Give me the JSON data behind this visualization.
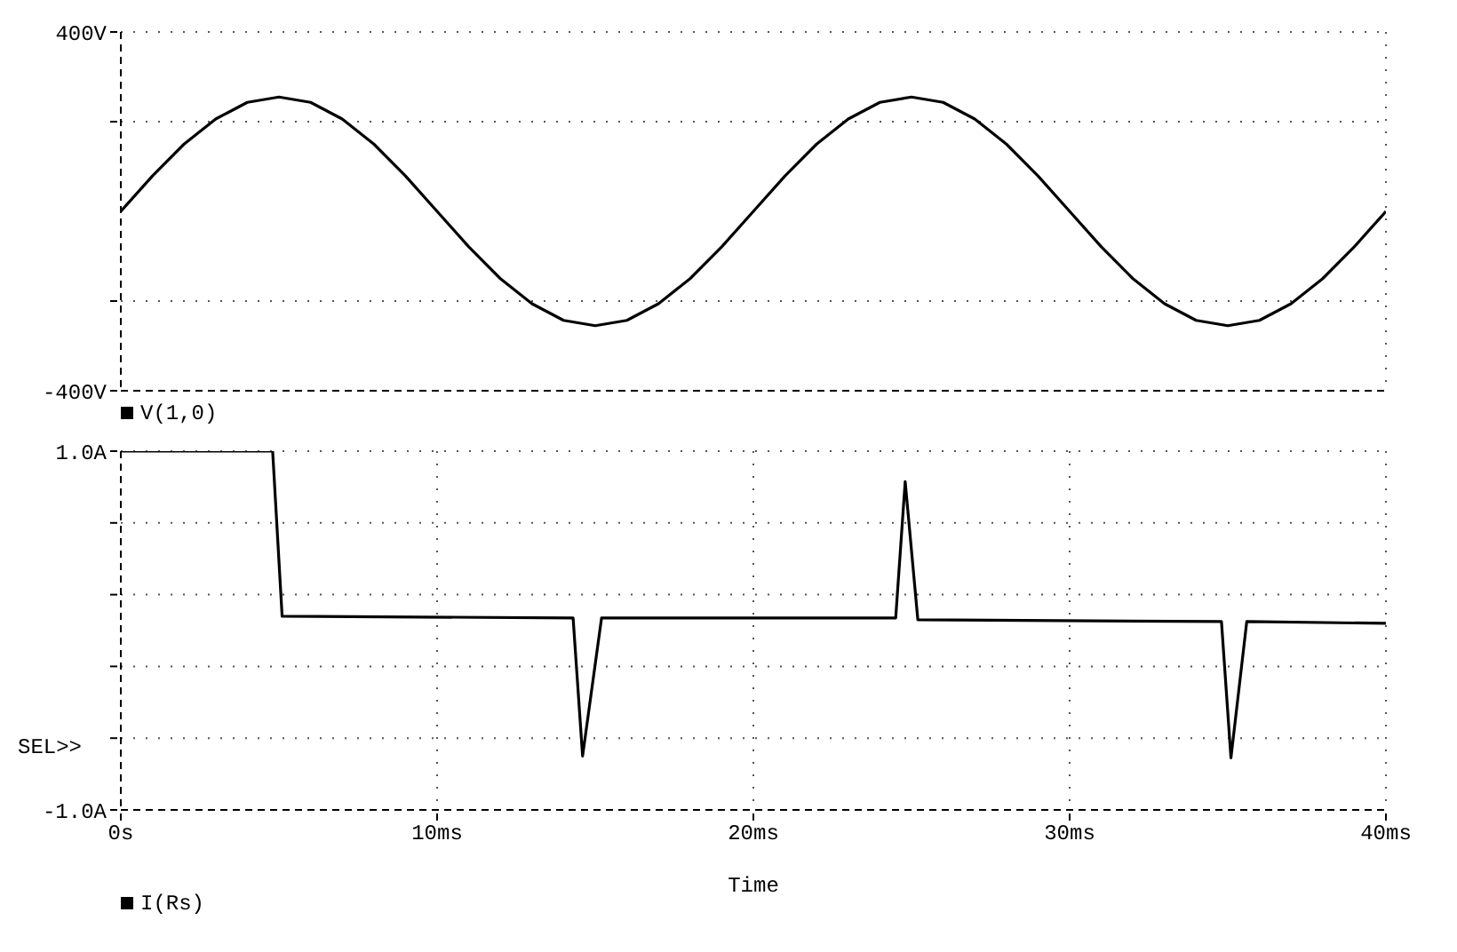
{
  "chart_data": [
    {
      "type": "line",
      "x": [
        0,
        1,
        2,
        3,
        4,
        5,
        6,
        7,
        8,
        9,
        10,
        11,
        12,
        13,
        14,
        15,
        16,
        17,
        18,
        19,
        20,
        21,
        22,
        23,
        24,
        25,
        26,
        27,
        28,
        29,
        30,
        31,
        32,
        33,
        34,
        35,
        36,
        37,
        38,
        39,
        40
      ],
      "series": [
        {
          "name": "V(1,0)",
          "color": "#000000",
          "values": [
            0,
            79,
            150,
            206,
            243,
            255,
            243,
            206,
            150,
            79,
            0,
            -79,
            -150,
            -206,
            -243,
            -255,
            -243,
            -206,
            -150,
            -79,
            0,
            79,
            150,
            206,
            243,
            255,
            243,
            206,
            150,
            79,
            0,
            -79,
            -150,
            -206,
            -243,
            -255,
            -243,
            -206,
            -150,
            -79,
            0
          ]
        }
      ],
      "xlim": [
        0,
        40
      ],
      "xticks": [
        {
          "value": 0,
          "label": null
        },
        {
          "value": 10,
          "label": null
        },
        {
          "value": 20,
          "label": null
        },
        {
          "value": 30,
          "label": null
        },
        {
          "value": 40,
          "label": null
        }
      ],
      "ylim": [
        -400,
        400
      ],
      "yticks": [
        {
          "value": -400,
          "label": "-400V"
        },
        {
          "value": -200,
          "label": null
        },
        {
          "value": 200,
          "label": null
        },
        {
          "value": 400,
          "label": "400V"
        }
      ],
      "tick_labels": "y",
      "grid": true,
      "legend": "bottom left",
      "marker": "none",
      "line_style": "solid"
    },
    {
      "type": "line",
      "x": [
        0,
        4.8,
        5.1,
        14.3,
        14.6,
        15.2,
        24.5,
        24.8,
        25.2,
        34.8,
        35.1,
        35.6,
        40
      ],
      "series": [
        {
          "name": "I(Rs)",
          "color": "#000000",
          "values": [
            1.0,
            1.0,
            0.08,
            0.07,
            -0.7,
            0.07,
            0.07,
            0.83,
            0.06,
            0.05,
            -0.71,
            0.05,
            0.04
          ]
        }
      ],
      "xlim": [
        0,
        40
      ],
      "xticks": [
        {
          "value": 0,
          "label": "0s"
        },
        {
          "value": 10,
          "label": "10ms"
        },
        {
          "value": 20,
          "label": "20ms"
        },
        {
          "value": 30,
          "label": "30ms"
        },
        {
          "value": 40,
          "label": "40ms"
        }
      ],
      "ylim": [
        -1.0,
        1.0
      ],
      "yticks": [
        {
          "value": -1.0,
          "label": "-1.0A"
        },
        {
          "value": -0.6,
          "label": null
        },
        {
          "value": -0.2,
          "label": null
        },
        {
          "value": 0.2,
          "label": null
        },
        {
          "value": 0.6,
          "label": null
        },
        {
          "value": 1.0,
          "label": "1.0A"
        }
      ],
      "xlabel": "Time",
      "annotations": [
        "SEL>>"
      ],
      "grid": true,
      "legend": "bottom left",
      "marker": "none",
      "line_style": "solid"
    }
  ]
}
